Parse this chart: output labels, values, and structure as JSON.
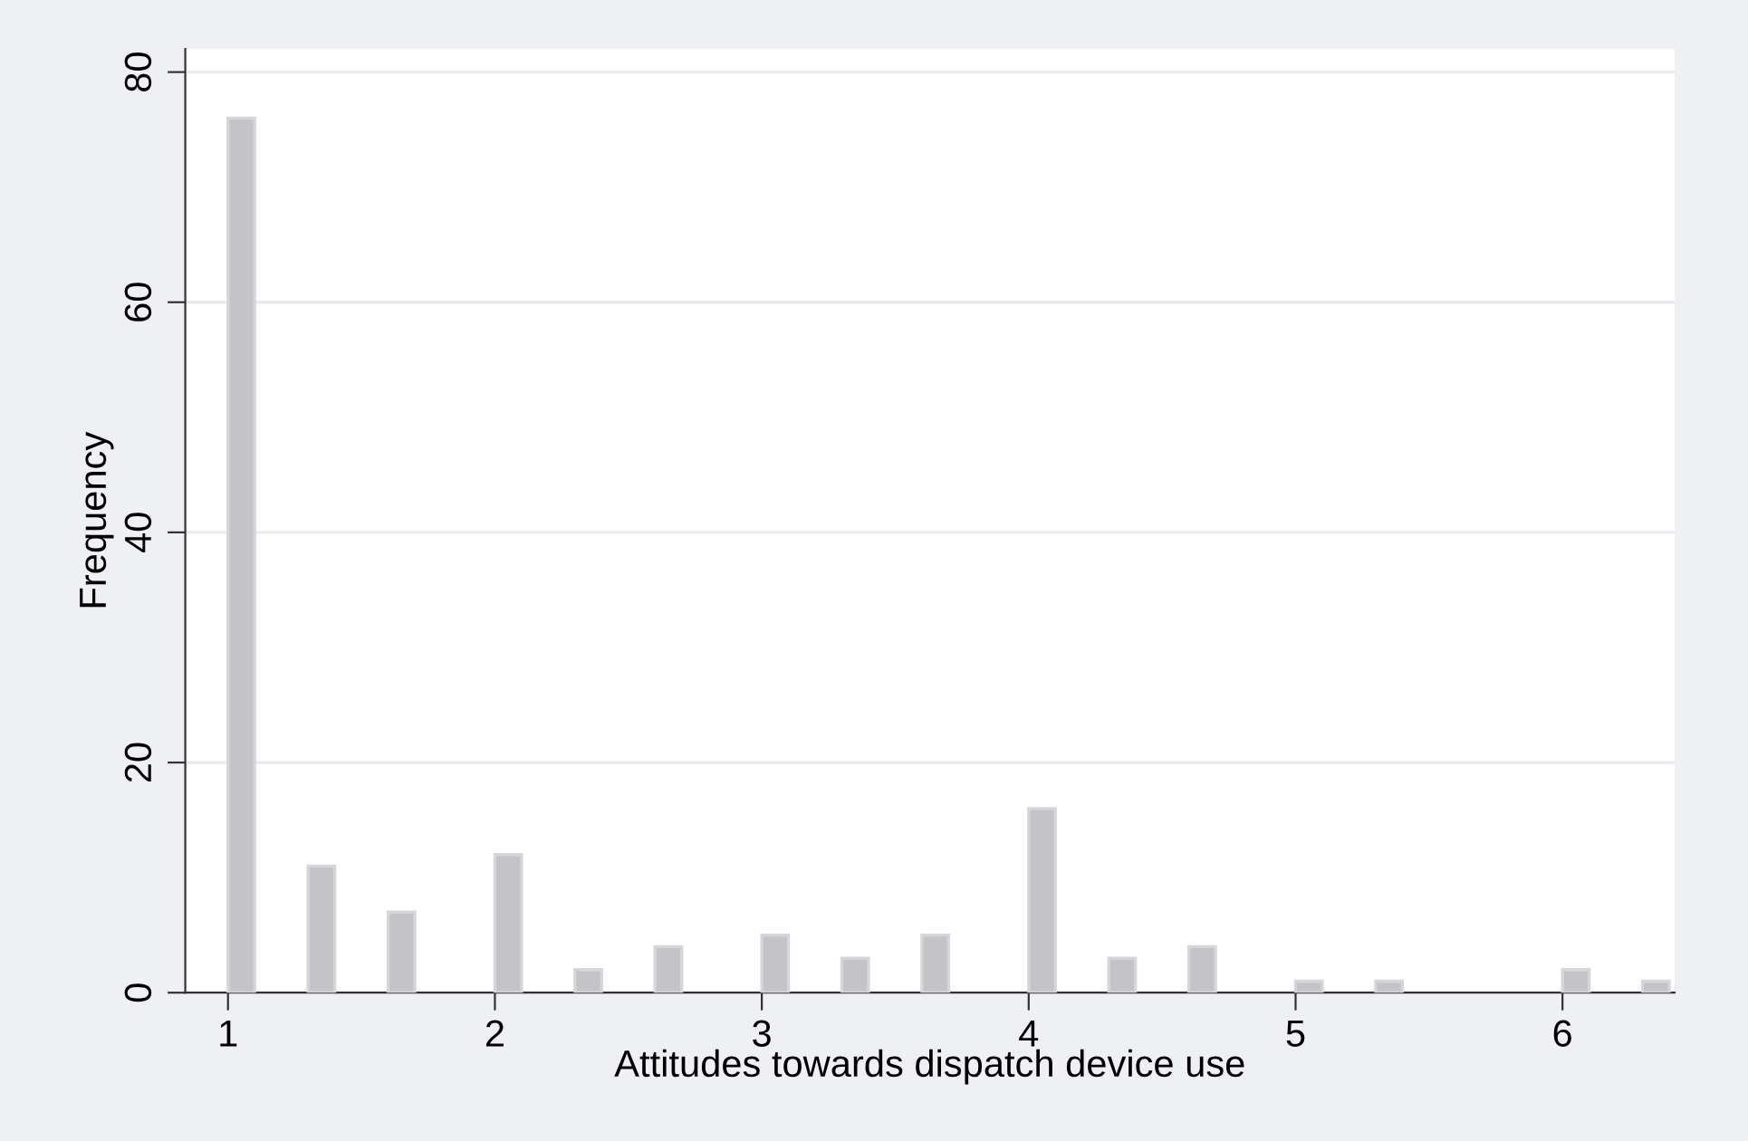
{
  "chart_data": {
    "type": "bar",
    "xlabel": "Attitudes towards dispatch device use",
    "ylabel": "Frequency",
    "x": [
      1.05,
      1.35,
      1.65,
      2.05,
      2.35,
      2.65,
      3.05,
      3.35,
      3.65,
      4.05,
      4.35,
      4.65,
      5.05,
      5.35,
      6.05,
      6.35
    ],
    "values": [
      76,
      11,
      7,
      12,
      2,
      4,
      5,
      3,
      5,
      16,
      3,
      4,
      1,
      1,
      2,
      1
    ],
    "color": "#c4c4c8",
    "xlim": [
      0.84,
      6.42
    ],
    "xticks": [
      1,
      2,
      3,
      4,
      5,
      6
    ],
    "ylim": [
      0,
      82
    ],
    "yticks": [
      0,
      20,
      40,
      60,
      80
    ],
    "grid": "y"
  }
}
